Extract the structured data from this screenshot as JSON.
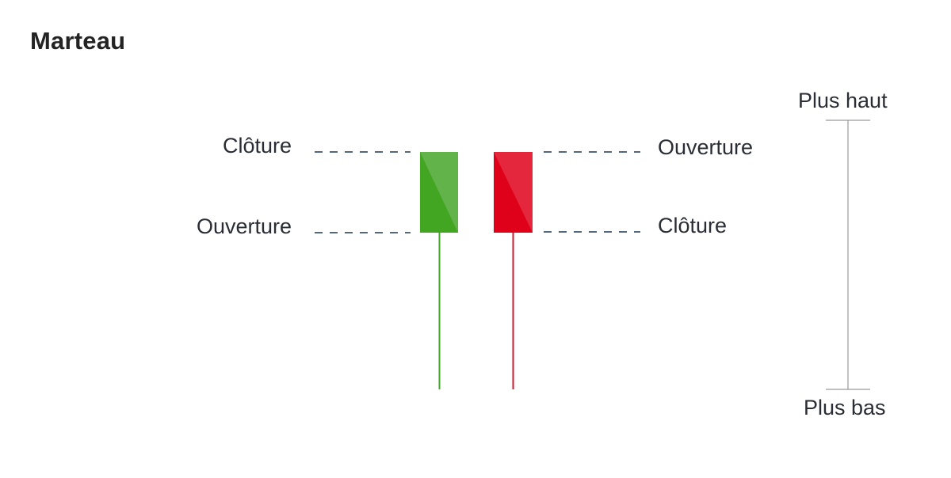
{
  "title": "Marteau",
  "colors": {
    "bullish_body": "#43a623",
    "bullish_highlight": "#62b34a",
    "bearish_body": "#df0019",
    "bearish_highlight": "#e4273c",
    "bullish_wick": "#3fa62a",
    "bearish_wick": "#d6152e",
    "guide_line": "#1b3550",
    "range_line": "#9a9a9a"
  },
  "candles": {
    "bullish": {
      "top_label": "Clôture",
      "bottom_label": "Ouverture"
    },
    "bearish": {
      "top_label": "Ouverture",
      "bottom_label": "Clôture"
    }
  },
  "range": {
    "high_label": "Plus haut",
    "low_label": "Plus bas"
  }
}
